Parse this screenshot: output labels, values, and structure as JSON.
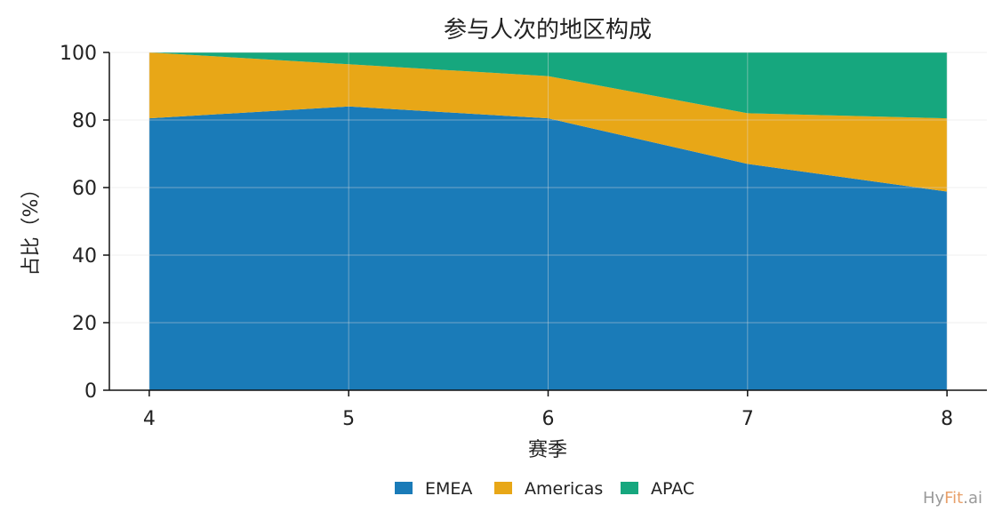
{
  "chart_data": {
    "type": "area",
    "stacked": true,
    "title": "参与人次的地区构成",
    "xlabel": "赛季",
    "ylabel": "占比（%）",
    "x": [
      4,
      5,
      6,
      7,
      8
    ],
    "x_ticks": [
      "4",
      "5",
      "6",
      "7",
      "8"
    ],
    "ylim": [
      0,
      100
    ],
    "y_ticks": [
      "0",
      "20",
      "40",
      "60",
      "80",
      "100"
    ],
    "grid": true,
    "legend_position": "bottom-center",
    "series": [
      {
        "name": "EMEA",
        "color": "#1a7bb8",
        "values": [
          80.5,
          84.0,
          80.5,
          67.0,
          58.8
        ]
      },
      {
        "name": "Americas",
        "color": "#e8a717",
        "values": [
          19.5,
          12.5,
          12.5,
          15.0,
          21.7
        ]
      },
      {
        "name": "APAC",
        "color": "#16a77e",
        "values": [
          0.0,
          3.5,
          7.0,
          18.0,
          19.5
        ]
      }
    ]
  },
  "watermark": {
    "part1": "Hy",
    "part2": "Fit",
    "part3": ".ai"
  }
}
